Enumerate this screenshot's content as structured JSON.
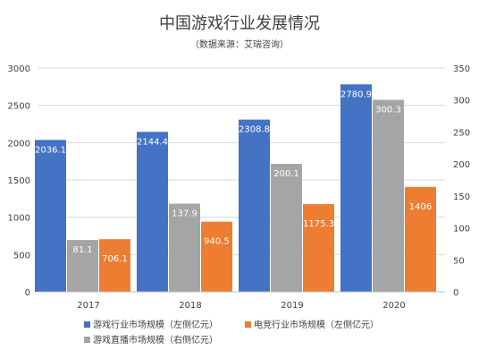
{
  "chart_data": {
    "type": "bar",
    "title": "中国游戏行业发展情况",
    "subtitle": "（数据来源：艾瑞咨询）",
    "categories": [
      "2017",
      "2018",
      "2019",
      "2020"
    ],
    "y_left": {
      "min": 0,
      "max": 3000,
      "ticks": [
        "0",
        "500",
        "1000",
        "1500",
        "2000",
        "2500",
        "3000"
      ]
    },
    "y_right": {
      "min": 0,
      "max": 350,
      "ticks": [
        "0",
        "50",
        "100",
        "150",
        "200",
        "250",
        "300",
        "350"
      ]
    },
    "grid": true,
    "legend_position": "bottom",
    "series": [
      {
        "name": "游戏行业市场规模（左侧亿元）",
        "axis": "left",
        "color": "#4472c4",
        "label_color": "#ffffff",
        "values": [
          2036.1,
          2144.4,
          2308.8,
          2780.9
        ],
        "labels": [
          "2036.1",
          "2144.4",
          "2308.8",
          "2780.9"
        ]
      },
      {
        "name": "游戏直播市场规模（右侧亿元）",
        "axis": "right",
        "color": "#a5a5a5",
        "label_color": "#ffffff",
        "values": [
          81.1,
          137.9,
          200.1,
          300.3
        ],
        "labels": [
          "81.1",
          "137.9",
          "200.1",
          "300.3"
        ]
      },
      {
        "name": "电竞行业市场规模（左侧亿元）",
        "axis": "left",
        "color": "#ed7d31",
        "label_color": "#ffffff",
        "values": [
          706.1,
          940.5,
          1175.3,
          1406
        ],
        "labels": [
          "706.1",
          "940.5",
          "1175.3",
          "1406"
        ]
      }
    ],
    "legend": [
      {
        "name": "游戏行业市场规模（左侧亿元）",
        "color": "#4472c4"
      },
      {
        "name": "电竞行业市场规模（左侧亿元）",
        "color": "#ed7d31"
      },
      {
        "name": "游戏直播市场规模（右侧亿元）",
        "color": "#a5a5a5"
      }
    ]
  }
}
